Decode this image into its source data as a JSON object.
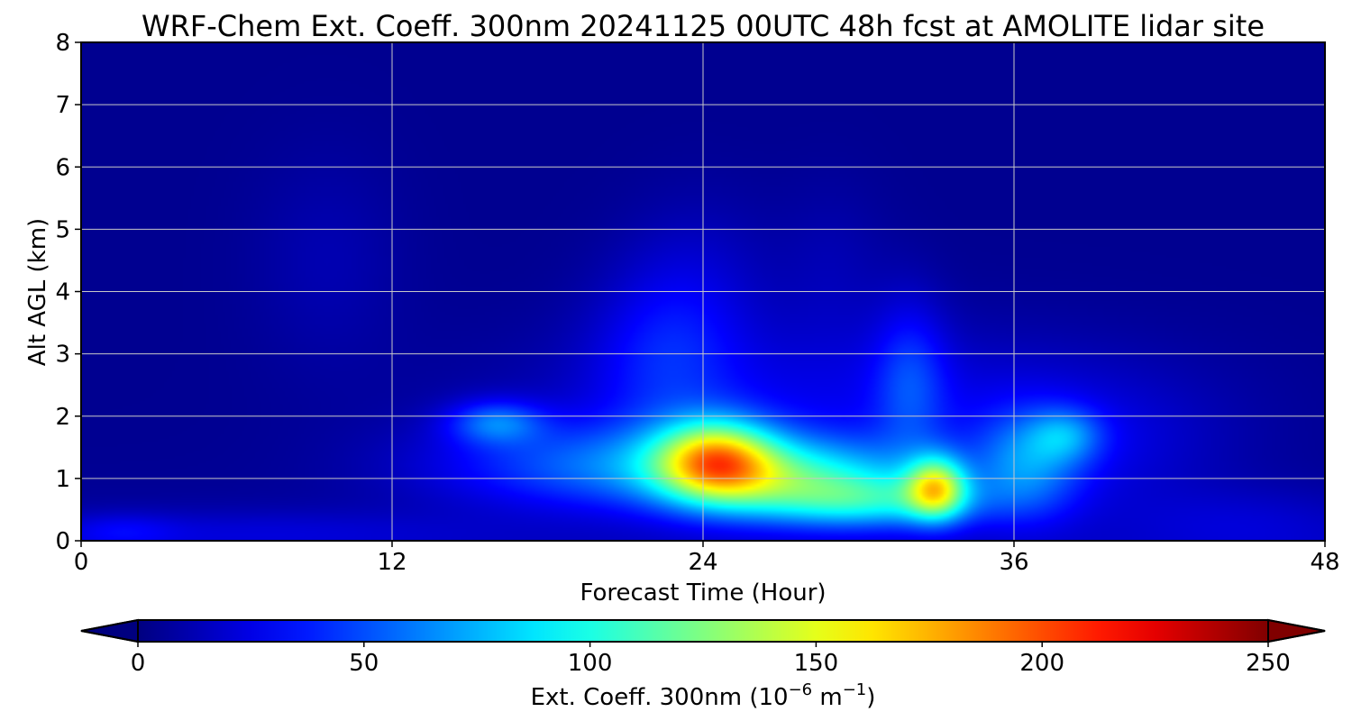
{
  "chart_data": {
    "type": "heatmap",
    "title": "WRF-Chem Ext. Coeff. 300nm  20241125 00UTC 48h fcst at AMOLITE lidar site",
    "xlabel": "Forecast Time (Hour)",
    "ylabel": "Alt AGL (km)",
    "xlim": [
      0,
      48
    ],
    "ylim": [
      0,
      8
    ],
    "xticks": [
      0,
      12,
      24,
      36,
      48
    ],
    "yticks": [
      0,
      1,
      2,
      3,
      4,
      5,
      6,
      7,
      8
    ],
    "grid": true,
    "colorbar": {
      "label_main": "Ext. Coeff. 300nm  (10",
      "label_exp1": "−6",
      "label_mid": " m",
      "label_exp2": "−1",
      "label_end": ")",
      "range": [
        0,
        250
      ],
      "ticks": [
        0,
        50,
        100,
        150,
        200,
        250
      ],
      "extend": "both",
      "colormap": "jet"
    },
    "plumes": [
      {
        "x": 24.5,
        "y": 1.3,
        "sx": 1.6,
        "sy": 0.45,
        "value": 115
      },
      {
        "x": 33.0,
        "y": 0.85,
        "sx": 0.8,
        "sy": 0.35,
        "value": 105
      },
      {
        "x": 27.5,
        "y": 1.0,
        "sx": 3.5,
        "sy": 0.45,
        "value": 80
      },
      {
        "x": 20.0,
        "y": 1.2,
        "sx": 4.5,
        "sy": 0.5,
        "value": 45
      },
      {
        "x": 16.0,
        "y": 1.9,
        "sx": 1.3,
        "sy": 0.25,
        "value": 45
      },
      {
        "x": 30.5,
        "y": 0.6,
        "sx": 3.0,
        "sy": 0.3,
        "value": 55
      },
      {
        "x": 36.5,
        "y": 1.2,
        "sx": 1.5,
        "sy": 0.6,
        "value": 45
      },
      {
        "x": 38.0,
        "y": 1.7,
        "sx": 1.0,
        "sy": 0.3,
        "value": 35
      },
      {
        "x": 22.5,
        "y": 3.0,
        "sx": 2.0,
        "sy": 1.0,
        "value": 25
      },
      {
        "x": 32.0,
        "y": 2.6,
        "sx": 1.0,
        "sy": 0.9,
        "value": 30
      },
      {
        "x": 29.0,
        "y": 2.2,
        "sx": 8.0,
        "sy": 0.9,
        "value": 20
      },
      {
        "x": 39.0,
        "y": 1.5,
        "sx": 3.5,
        "sy": 0.8,
        "value": 15
      },
      {
        "x": 45.0,
        "y": 0.3,
        "sx": 3.5,
        "sy": 0.4,
        "value": 12
      },
      {
        "x": 7.0,
        "y": 0.15,
        "sx": 6.0,
        "sy": 0.25,
        "value": 12
      },
      {
        "x": 1.5,
        "y": 0.15,
        "sx": 1.5,
        "sy": 0.2,
        "value": 15
      },
      {
        "x": 9.5,
        "y": 4.5,
        "sx": 2.0,
        "sy": 1.2,
        "value": 8
      },
      {
        "x": 24.0,
        "y": 4.2,
        "sx": 2.0,
        "sy": 1.0,
        "value": 10
      },
      {
        "x": 29.0,
        "y": 4.3,
        "sx": 1.5,
        "sy": 1.0,
        "value": 8
      }
    ],
    "background_value": 4,
    "near_surface_value": 8
  }
}
